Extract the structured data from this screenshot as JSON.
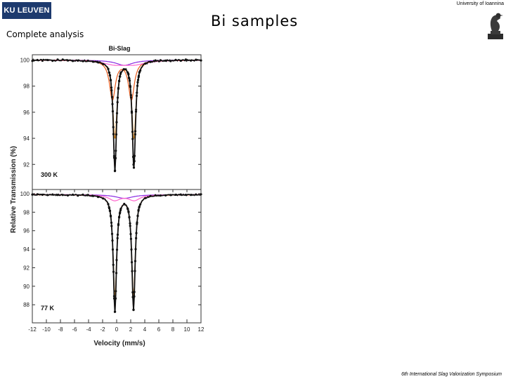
{
  "header": {
    "logo_text": "KU LEUVEN",
    "subtitle": "Complete analysis",
    "title": "Bi samples",
    "university": "University of Ioannina",
    "crest_icon": "bird-statue-icon"
  },
  "footer": {
    "text": "6th International Slag Valorization Symposium"
  },
  "chart_data": {
    "type": "line",
    "title": "Bi-Slag",
    "xlabel": "Velocity (mm/s)",
    "ylabel": "Relative Transmission (%)",
    "xlim": [
      -12,
      12
    ],
    "x_ticks": [
      -12,
      -10,
      -8,
      -6,
      -4,
      -2,
      0,
      2,
      4,
      6,
      8,
      10,
      12
    ],
    "grid": false,
    "colors": {
      "data": "#111111",
      "fit": "#d22020",
      "component_1": "#e8962a",
      "component_2": "#e85a1a",
      "component_3": "#8a2be2",
      "component_4": "#ff66cc"
    },
    "panels": [
      {
        "label": "300 K",
        "ylim": [
          90.4,
          100.3
        ],
        "y_ticks": [
          92,
          94,
          96,
          98,
          100
        ],
        "baseline": 100,
        "dips": [
          {
            "center": -0.25,
            "depth": 8.4,
            "width": 0.28
          },
          {
            "center": 2.45,
            "depth": 8.2,
            "width": 0.28
          }
        ],
        "components": [
          {
            "name": "component_1",
            "centers": [
              -0.25,
              2.45
            ],
            "depth": 6.0,
            "width": 0.35
          },
          {
            "name": "component_2",
            "centers": [
              -0.6,
              2.1
            ],
            "depth": 3.0,
            "width": 0.5
          },
          {
            "name": "component_3",
            "centers": [
              1.1
            ],
            "depth": 0.4,
            "width": 1.5
          },
          {
            "name": "component_4",
            "centers": [
              -0.3,
              2.5
            ],
            "depth": 0.3,
            "width": 2.0
          }
        ]
      },
      {
        "label": "77 K",
        "ylim": [
          86.5,
          100.3
        ],
        "y_ticks": [
          88,
          90,
          92,
          94,
          96,
          98,
          100
        ],
        "baseline": 99.9,
        "dips": [
          {
            "center": -0.25,
            "depth": 12.5,
            "width": 0.28
          },
          {
            "center": 2.4,
            "depth": 12.3,
            "width": 0.28
          }
        ],
        "components": [
          {
            "name": "component_1",
            "centers": [
              -0.25,
              2.4
            ],
            "depth": 11.0,
            "width": 0.3
          },
          {
            "name": "component_3",
            "centers": [
              1.1
            ],
            "depth": 0.4,
            "width": 1.5
          },
          {
            "name": "component_4",
            "centers": [
              -0.3,
              2.5
            ],
            "depth": 0.6,
            "width": 1.0
          }
        ]
      }
    ]
  }
}
